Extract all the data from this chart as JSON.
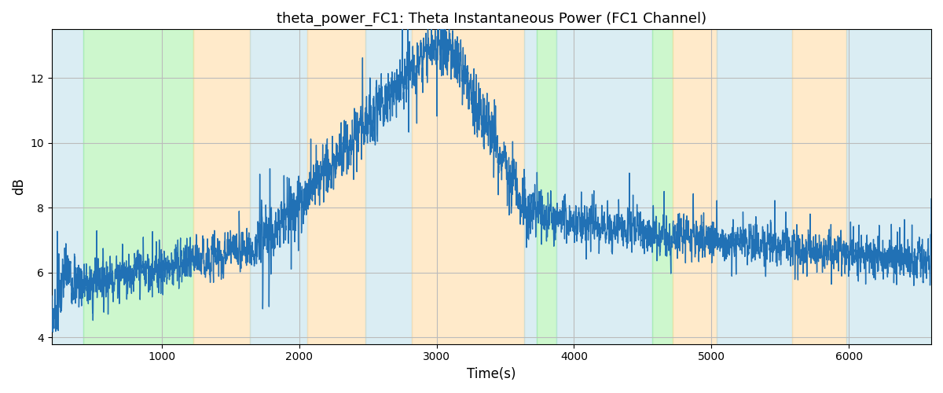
{
  "title": "theta_power_FC1: Theta Instantaneous Power (FC1 Channel)",
  "xlabel": "Time(s)",
  "ylabel": "dB",
  "xlim": [
    200,
    6600
  ],
  "ylim": [
    3.8,
    13.5
  ],
  "line_color": "#2171b5",
  "line_width": 1.0,
  "bg_color": "#ffffff",
  "grid_color": "#bbbbbb",
  "yticks": [
    4,
    6,
    8,
    10,
    12
  ],
  "xticks": [
    1000,
    2000,
    3000,
    4000,
    5000,
    6000
  ],
  "color_bands": [
    {
      "xmin": 200,
      "xmax": 430,
      "color": "#add8e6",
      "alpha": 0.45
    },
    {
      "xmin": 430,
      "xmax": 1230,
      "color": "#90ee90",
      "alpha": 0.45
    },
    {
      "xmin": 1230,
      "xmax": 1640,
      "color": "#ffd9a0",
      "alpha": 0.55
    },
    {
      "xmin": 1640,
      "xmax": 2060,
      "color": "#add8e6",
      "alpha": 0.45
    },
    {
      "xmin": 2060,
      "xmax": 2480,
      "color": "#ffd9a0",
      "alpha": 0.55
    },
    {
      "xmin": 2480,
      "xmax": 2820,
      "color": "#add8e6",
      "alpha": 0.45
    },
    {
      "xmin": 2820,
      "xmax": 3640,
      "color": "#ffd9a0",
      "alpha": 0.55
    },
    {
      "xmin": 3640,
      "xmax": 3730,
      "color": "#add8e6",
      "alpha": 0.45
    },
    {
      "xmin": 3730,
      "xmax": 3870,
      "color": "#90ee90",
      "alpha": 0.45
    },
    {
      "xmin": 3870,
      "xmax": 4570,
      "color": "#add8e6",
      "alpha": 0.45
    },
    {
      "xmin": 4570,
      "xmax": 4720,
      "color": "#90ee90",
      "alpha": 0.45
    },
    {
      "xmin": 4720,
      "xmax": 5040,
      "color": "#ffd9a0",
      "alpha": 0.55
    },
    {
      "xmin": 5040,
      "xmax": 5590,
      "color": "#add8e6",
      "alpha": 0.45
    },
    {
      "xmin": 5590,
      "xmax": 5980,
      "color": "#ffd9a0",
      "alpha": 0.55
    },
    {
      "xmin": 5980,
      "xmax": 6600,
      "color": "#add8e6",
      "alpha": 0.45
    }
  ],
  "seed": 7
}
